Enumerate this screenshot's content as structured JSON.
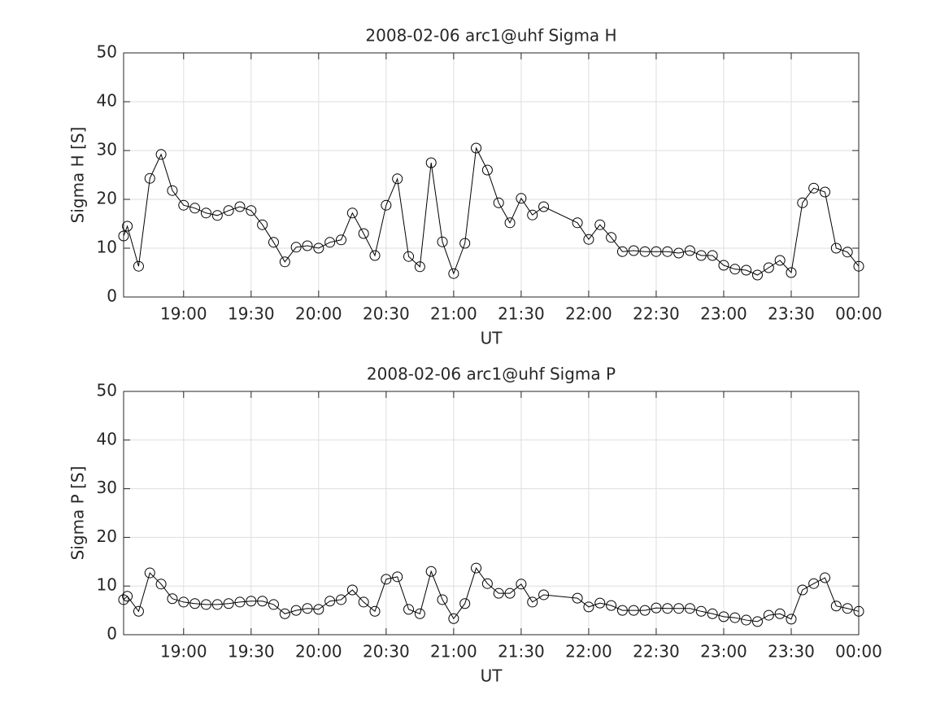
{
  "chart_data": [
    {
      "type": "line",
      "title": "2008-02-06  arc1@uhf Sigma H",
      "xlabel": "UT",
      "ylabel": "Sigma H [S]",
      "x": [
        18.5556,
        18.5833,
        18.6667,
        18.75,
        18.8333,
        18.9167,
        19,
        19.0833,
        19.1667,
        19.25,
        19.3333,
        19.4167,
        19.5,
        19.5833,
        19.6667,
        19.75,
        19.8333,
        19.9167,
        20,
        20.0833,
        20.1667,
        20.25,
        20.3333,
        20.4167,
        20.5,
        20.5833,
        20.6667,
        20.75,
        20.8333,
        20.9167,
        21,
        21.0833,
        21.1667,
        21.25,
        21.3333,
        21.4167,
        21.5,
        21.5833,
        21.6667,
        21.9167,
        22,
        22.0833,
        22.1667,
        22.25,
        22.3333,
        22.4167,
        22.5,
        22.5833,
        22.6667,
        22.75,
        22.8333,
        22.9167,
        23,
        23.0833,
        23.1667,
        23.25,
        23.3333,
        23.4167,
        23.5,
        23.5833,
        23.6667,
        23.75,
        23.8333,
        23.9167,
        24
      ],
      "values": [
        12.5,
        14.5,
        6.3,
        24.3,
        29.2,
        21.8,
        18.8,
        18.2,
        17.2,
        16.7,
        17.7,
        18.5,
        17.7,
        14.8,
        11.2,
        7.2,
        10.2,
        10.5,
        10.0,
        11.2,
        11.7,
        17.2,
        13.0,
        8.5,
        18.8,
        24.2,
        8.3,
        6.2,
        27.5,
        11.3,
        4.8,
        11.0,
        30.5,
        26.0,
        19.3,
        15.2,
        20.2,
        16.8,
        18.5,
        15.2,
        11.8,
        14.8,
        12.2,
        9.3,
        9.5,
        9.3,
        9.3,
        9.3,
        9.0,
        9.5,
        8.5,
        8.5,
        6.5,
        5.7,
        5.5,
        4.5,
        6.0,
        7.5,
        5.0,
        19.3,
        22.3,
        21.5,
        10.0,
        9.2,
        6.3
      ],
      "color": "#000000",
      "marker": "circle",
      "grid": true,
      "xlim": [
        18.5556,
        24
      ],
      "xticks": [
        {
          "value": 19,
          "label": "19:00"
        },
        {
          "value": 19.5,
          "label": "19:30"
        },
        {
          "value": 20,
          "label": "20:00"
        },
        {
          "value": 20.5,
          "label": "20:30"
        },
        {
          "value": 21,
          "label": "21:00"
        },
        {
          "value": 21.5,
          "label": "21:30"
        },
        {
          "value": 22,
          "label": "22:00"
        },
        {
          "value": 22.5,
          "label": "22:30"
        },
        {
          "value": 23,
          "label": "23:00"
        },
        {
          "value": 23.5,
          "label": "23:30"
        },
        {
          "value": 24,
          "label": "00:00"
        }
      ],
      "ylim": [
        0,
        50
      ],
      "yticks": [
        0,
        10,
        20,
        30,
        40,
        50
      ]
    },
    {
      "type": "line",
      "title": "2008-02-06  arc1@uhf Sigma P",
      "xlabel": "UT",
      "ylabel": "Sigma P [S]",
      "x": [
        18.5556,
        18.5833,
        18.6667,
        18.75,
        18.8333,
        18.9167,
        19,
        19.0833,
        19.1667,
        19.25,
        19.3333,
        19.4167,
        19.5,
        19.5833,
        19.6667,
        19.75,
        19.8333,
        19.9167,
        20,
        20.0833,
        20.1667,
        20.25,
        20.3333,
        20.4167,
        20.5,
        20.5833,
        20.6667,
        20.75,
        20.8333,
        20.9167,
        21,
        21.0833,
        21.1667,
        21.25,
        21.3333,
        21.4167,
        21.5,
        21.5833,
        21.6667,
        21.9167,
        22,
        22.0833,
        22.1667,
        22.25,
        22.3333,
        22.4167,
        22.5,
        22.5833,
        22.6667,
        22.75,
        22.8333,
        22.9167,
        23,
        23.0833,
        23.1667,
        23.25,
        23.3333,
        23.4167,
        23.5,
        23.5833,
        23.6667,
        23.75,
        23.8333,
        23.9167,
        24
      ],
      "values": [
        7.2,
        7.9,
        4.8,
        12.7,
        10.4,
        7.4,
        6.7,
        6.4,
        6.2,
        6.2,
        6.4,
        6.7,
        6.9,
        6.9,
        6.2,
        4.3,
        5.0,
        5.4,
        5.2,
        6.9,
        7.2,
        9.2,
        6.7,
        4.8,
        11.4,
        11.9,
        5.2,
        4.3,
        13.0,
        7.2,
        3.3,
        6.4,
        13.7,
        10.5,
        8.5,
        8.5,
        10.4,
        6.7,
        8.2,
        7.5,
        5.7,
        6.5,
        6.0,
        5.0,
        5.0,
        5.0,
        5.5,
        5.4,
        5.4,
        5.4,
        4.8,
        4.3,
        3.7,
        3.5,
        3.0,
        2.7,
        4.0,
        4.3,
        3.2,
        9.2,
        10.5,
        11.7,
        5.9,
        5.4,
        4.8
      ],
      "color": "#000000",
      "marker": "circle",
      "grid": true,
      "xlim": [
        18.5556,
        24
      ],
      "xticks": [
        {
          "value": 19,
          "label": "19:00"
        },
        {
          "value": 19.5,
          "label": "19:30"
        },
        {
          "value": 20,
          "label": "20:00"
        },
        {
          "value": 20.5,
          "label": "20:30"
        },
        {
          "value": 21,
          "label": "21:00"
        },
        {
          "value": 21.5,
          "label": "21:30"
        },
        {
          "value": 22,
          "label": "22:00"
        },
        {
          "value": 22.5,
          "label": "22:30"
        },
        {
          "value": 23,
          "label": "23:00"
        },
        {
          "value": 23.5,
          "label": "23:30"
        },
        {
          "value": 24,
          "label": "00:00"
        }
      ],
      "ylim": [
        0,
        50
      ],
      "yticks": [
        0,
        10,
        20,
        30,
        40,
        50
      ]
    }
  ]
}
